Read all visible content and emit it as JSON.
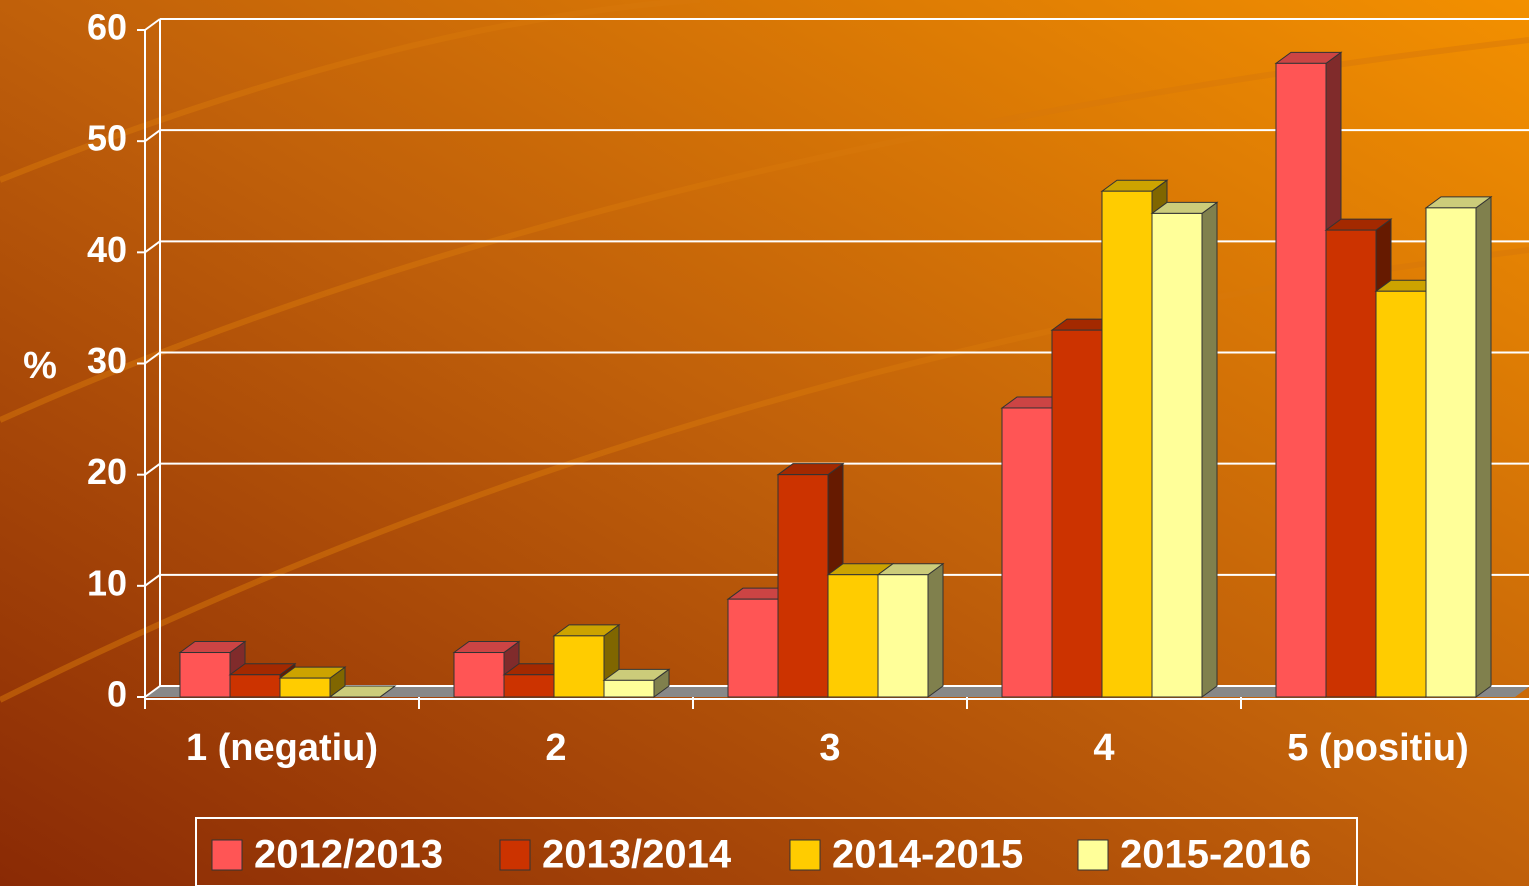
{
  "chart_data": {
    "type": "bar",
    "y_label": "%",
    "categories": [
      "1 (negatiu)",
      "2",
      "3",
      "4",
      "5 (positiu)"
    ],
    "series": [
      {
        "name": "2012/2013",
        "color": "#ff5555",
        "values": [
          4,
          4,
          8.8,
          26,
          57
        ]
      },
      {
        "name": "2013/2014",
        "color": "#cc3300",
        "values": [
          2,
          2,
          20,
          33,
          42
        ]
      },
      {
        "name": "2014-2015",
        "color": "#ffcc00",
        "values": [
          1.7,
          5.5,
          11,
          45.5,
          36.5
        ]
      },
      {
        "name": "2015-2016",
        "color": "#ffff99",
        "values": [
          0,
          1.5,
          11,
          43.5,
          44
        ]
      }
    ],
    "ylim": [
      0,
      60
    ],
    "yticks": [
      0,
      10,
      20,
      30,
      40,
      50,
      60
    ],
    "grid": true
  }
}
